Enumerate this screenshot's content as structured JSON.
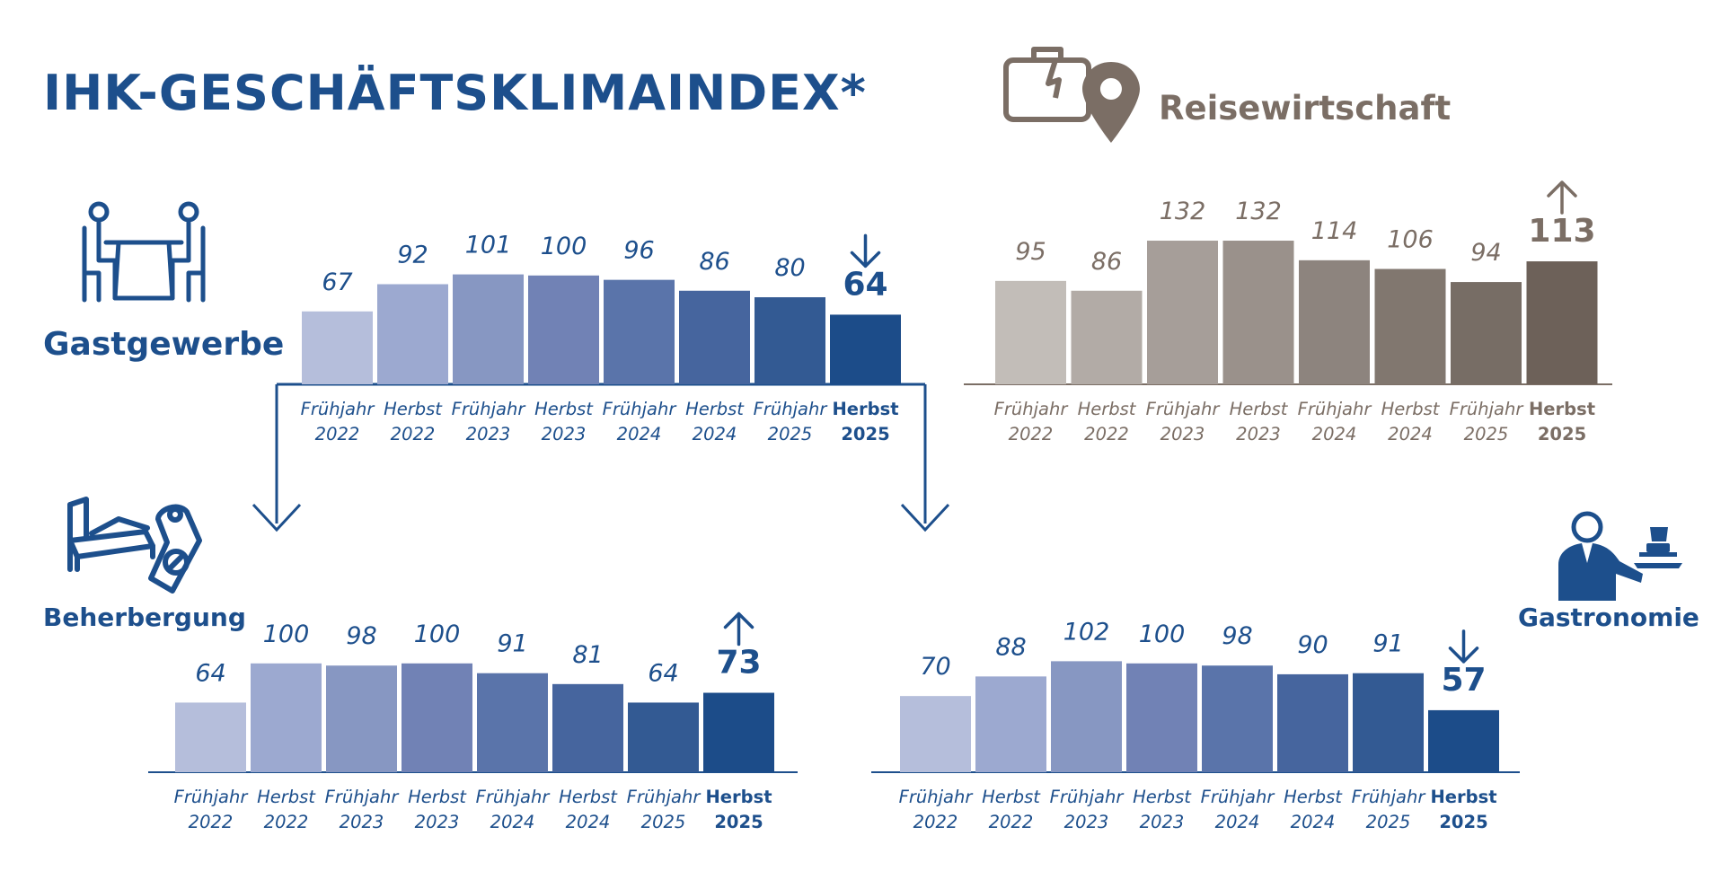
{
  "title": "IHK-GESCHÄFTSKLIMAINDEX*",
  "labels": {
    "gastgewerbe": "Gastgewerbe",
    "reisewirtschaft": "Reisewirtschaft",
    "beherbergung": "Beherbergung",
    "gastronomie": "Gastronomie"
  },
  "icons": {
    "gastgewerbe": "dining-table-icon",
    "reisewirtschaft": "suitcase-location-icon",
    "beherbergung": "bed-do-not-disturb-icon",
    "gastronomie": "waiter-tray-icon"
  },
  "colors": {
    "blue_series": [
      "#b5bedb",
      "#9ca9d0",
      "#8797c2",
      "#7182b5",
      "#5a74aa",
      "#46659e",
      "#335a93",
      "#1c4c89"
    ],
    "gray_series": [
      "#c2bdb8",
      "#b2aba6",
      "#a69e99",
      "#9a918b",
      "#8d847e",
      "#81776f",
      "#776d65",
      "#6d6159"
    ],
    "blue_text": "#1d4f8c",
    "gray_text": "#7b6e65"
  },
  "chart_data": [
    {
      "id": "gastgewerbe",
      "type": "bar",
      "categories": [
        [
          "Frühjahr",
          "2022"
        ],
        [
          "Herbst",
          "2022"
        ],
        [
          "Frühjahr",
          "2023"
        ],
        [
          "Herbst",
          "2023"
        ],
        [
          "Frühjahr",
          "2024"
        ],
        [
          "Herbst",
          "2024"
        ],
        [
          "Frühjahr",
          "2025"
        ],
        [
          "Herbst",
          "2025"
        ]
      ],
      "values": [
        67,
        92,
        101,
        100,
        96,
        86,
        80,
        64
      ],
      "trend": "down",
      "highlight_last": true,
      "color_scheme": "blue"
    },
    {
      "id": "reisewirtschaft",
      "type": "bar",
      "categories": [
        [
          "Frühjahr",
          "2022"
        ],
        [
          "Herbst",
          "2022"
        ],
        [
          "Frühjahr",
          "2023"
        ],
        [
          "Herbst",
          "2023"
        ],
        [
          "Frühjahr",
          "2024"
        ],
        [
          "Herbst",
          "2024"
        ],
        [
          "Frühjahr",
          "2025"
        ],
        [
          "Herbst",
          "2025"
        ]
      ],
      "values": [
        95,
        86,
        132,
        132,
        114,
        106,
        94,
        113
      ],
      "trend": "up",
      "highlight_last": true,
      "color_scheme": "gray"
    },
    {
      "id": "beherbergung",
      "type": "bar",
      "categories": [
        [
          "Frühjahr",
          "2022"
        ],
        [
          "Herbst",
          "2022"
        ],
        [
          "Frühjahr",
          "2023"
        ],
        [
          "Herbst",
          "2023"
        ],
        [
          "Frühjahr",
          "2024"
        ],
        [
          "Herbst",
          "2024"
        ],
        [
          "Frühjahr",
          "2025"
        ],
        [
          "Herbst",
          "2025"
        ]
      ],
      "values": [
        64,
        100,
        98,
        100,
        91,
        81,
        64,
        73
      ],
      "trend": "up",
      "highlight_last": true,
      "color_scheme": "blue"
    },
    {
      "id": "gastronomie",
      "type": "bar",
      "categories": [
        [
          "Frühjahr",
          "2022"
        ],
        [
          "Herbst",
          "2022"
        ],
        [
          "Frühjahr",
          "2023"
        ],
        [
          "Herbst",
          "2023"
        ],
        [
          "Frühjahr",
          "2024"
        ],
        [
          "Herbst",
          "2024"
        ],
        [
          "Frühjahr",
          "2025"
        ],
        [
          "Herbst",
          "2025"
        ]
      ],
      "values": [
        70,
        88,
        102,
        100,
        98,
        90,
        91,
        57
      ],
      "trend": "down",
      "highlight_last": true,
      "color_scheme": "blue"
    }
  ]
}
